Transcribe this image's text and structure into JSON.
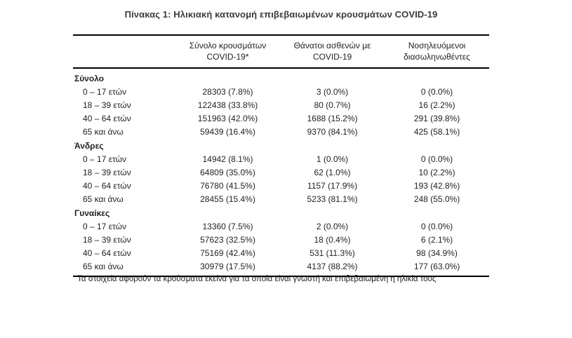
{
  "title": "Πίνακας 1: Ηλικιακή κατανομή επιβεβαιωμένων κρουσμάτων COVID-19",
  "table": {
    "columns": [
      {
        "line1": "Σύνολο κρουσμάτων",
        "line2": "COVID-19*"
      },
      {
        "line1": "Θάνατοι ασθενών με",
        "line2": "COVID-19"
      },
      {
        "line1": "Νοσηλευόμενοι",
        "line2": "διασωληνωθέντες"
      }
    ],
    "sections": [
      {
        "label": "Σύνολο",
        "rows": [
          {
            "label": "0 – 17 ετών",
            "values": [
              "28303 (7.8%)",
              "3 (0.0%)",
              "0 (0.0%)"
            ]
          },
          {
            "label": "18 – 39 ετών",
            "values": [
              "122438 (33.8%)",
              "80 (0.7%)",
              "16 (2.2%)"
            ]
          },
          {
            "label": "40 – 64 ετών",
            "values": [
              "151963 (42.0%)",
              "1688 (15.2%)",
              "291 (39.8%)"
            ]
          },
          {
            "label": "65 και άνω",
            "values": [
              "59439 (16.4%)",
              "9370 (84.1%)",
              "425 (58.1%)"
            ]
          }
        ]
      },
      {
        "label": "Άνδρες",
        "rows": [
          {
            "label": "0 – 17 ετών",
            "values": [
              "14942 (8.1%)",
              "1 (0.0%)",
              "0 (0.0%)"
            ]
          },
          {
            "label": "18 – 39 ετών",
            "values": [
              "64809 (35.0%)",
              "62 (1.0%)",
              "10 (2.2%)"
            ]
          },
          {
            "label": "40 – 64 ετών",
            "values": [
              "76780 (41.5%)",
              "1157 (17.9%)",
              "193 (42.8%)"
            ]
          },
          {
            "label": "65 και άνω",
            "values": [
              "28455 (15.4%)",
              "5233 (81.1%)",
              "248 (55.0%)"
            ]
          }
        ]
      },
      {
        "label": "Γυναίκες",
        "rows": [
          {
            "label": "0 – 17 ετών",
            "values": [
              "13360 (7.5%)",
              "2 (0.0%)",
              "0 (0.0%)"
            ]
          },
          {
            "label": "18 – 39 ετών",
            "values": [
              "57623 (32.5%)",
              "18 (0.4%)",
              "6 (2.1%)"
            ]
          },
          {
            "label": "40 – 64 ετών",
            "values": [
              "75169 (42.4%)",
              "531 (11.3%)",
              "98 (34.9%)"
            ]
          },
          {
            "label": "65 και άνω",
            "values": [
              "30979 (17.5%)",
              "4137 (88.2%)",
              "177 (63.0%)"
            ]
          }
        ]
      }
    ],
    "footnote_marker": "*",
    "footnote": "Τα στοιχεία αφορούν τα κρούσματα εκείνα για τα οποία είναι γνωστή και επιβεβαιωμένη η ηλικία τους"
  }
}
